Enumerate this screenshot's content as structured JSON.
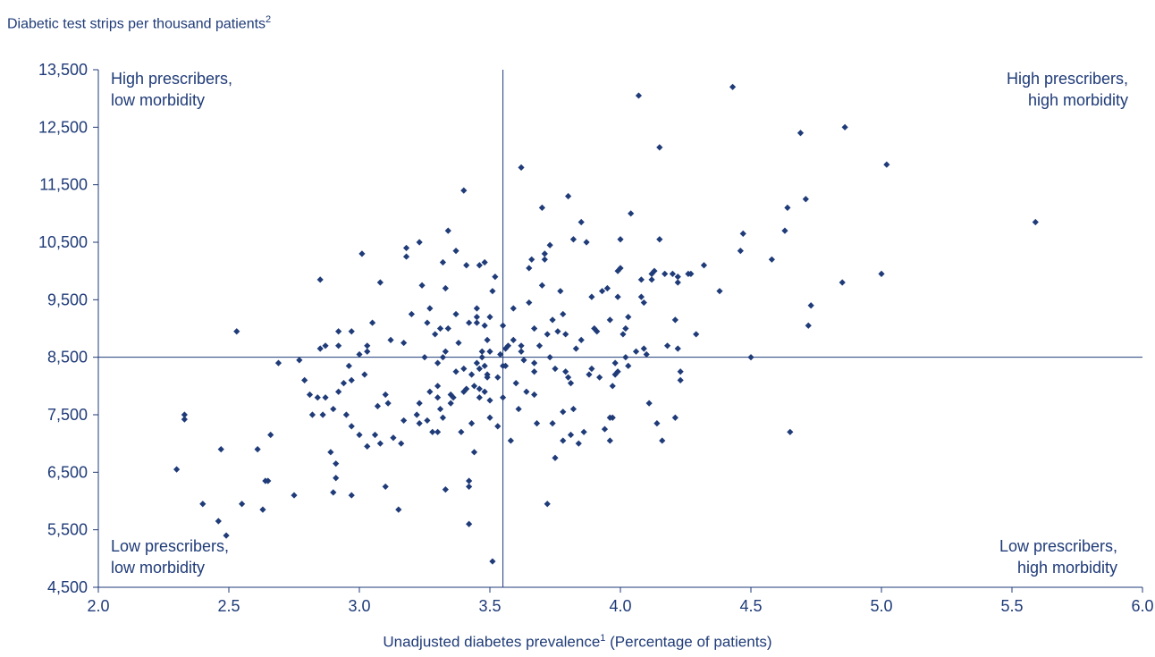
{
  "chart_data": {
    "type": "scatter",
    "ylabel": "Diabetic test strips per thousand patients",
    "ylabel_superscript": "2",
    "xlabel_pre": "Unadjusted diabetes prevalence",
    "xlabel_superscript": "1",
    "xlabel_post": " (Percentage of patients)",
    "xlim": [
      2.0,
      6.0
    ],
    "ylim": [
      4500,
      13500
    ],
    "xticks": [
      "2.0",
      "2.5",
      "3.0",
      "3.5",
      "4.0",
      "4.5",
      "5.0",
      "5.5",
      "6.0"
    ],
    "yticks": [
      "13,500",
      "12,500",
      "11,500",
      "10,500",
      "9,500",
      "8,500",
      "7,500",
      "6,500",
      "5,500",
      "4,500"
    ],
    "quadrant_divider": {
      "x": 3.55,
      "y": 8500
    },
    "quadrant_labels": {
      "top_left": [
        "High prescribers,",
        "low morbidity"
      ],
      "top_right": [
        "High prescribers,",
        "high morbidity"
      ],
      "bottom_left": [
        "Low prescribers,",
        "low morbidity"
      ],
      "bottom_right": [
        "Low prescribers,",
        "high morbidity"
      ]
    },
    "marker_color": "#1f3b78",
    "grid": false,
    "points": [
      [
        2.3,
        6550
      ],
      [
        2.33,
        7500
      ],
      [
        2.33,
        7420
      ],
      [
        2.4,
        5950
      ],
      [
        2.46,
        5650
      ],
      [
        2.47,
        6900
      ],
      [
        2.49,
        5400
      ],
      [
        2.53,
        8950
      ],
      [
        2.55,
        5950
      ],
      [
        2.61,
        6900
      ],
      [
        2.63,
        5850
      ],
      [
        2.64,
        6350
      ],
      [
        2.65,
        6350
      ],
      [
        2.66,
        7150
      ],
      [
        2.69,
        8400
      ],
      [
        2.75,
        6100
      ],
      [
        2.77,
        8450
      ],
      [
        2.79,
        8100
      ],
      [
        2.81,
        7850
      ],
      [
        2.82,
        7500
      ],
      [
        2.84,
        7800
      ],
      [
        2.85,
        9850
      ],
      [
        2.85,
        8650
      ],
      [
        2.86,
        7500
      ],
      [
        2.87,
        8700
      ],
      [
        2.87,
        7800
      ],
      [
        2.89,
        6850
      ],
      [
        2.9,
        7600
      ],
      [
        2.9,
        6150
      ],
      [
        2.91,
        6400
      ],
      [
        2.91,
        6650
      ],
      [
        2.92,
        7900
      ],
      [
        2.92,
        8700
      ],
      [
        2.92,
        8950
      ],
      [
        2.94,
        8050
      ],
      [
        2.95,
        7500
      ],
      [
        2.96,
        8350
      ],
      [
        2.97,
        8950
      ],
      [
        2.97,
        8100
      ],
      [
        2.97,
        7300
      ],
      [
        2.97,
        6100
      ],
      [
        3.0,
        8550
      ],
      [
        3.0,
        7150
      ],
      [
        3.01,
        10300
      ],
      [
        3.02,
        8200
      ],
      [
        3.03,
        6950
      ],
      [
        3.03,
        8700
      ],
      [
        3.03,
        8600
      ],
      [
        3.05,
        9100
      ],
      [
        3.06,
        7150
      ],
      [
        3.07,
        7650
      ],
      [
        3.08,
        9800
      ],
      [
        3.08,
        7000
      ],
      [
        3.1,
        6250
      ],
      [
        3.1,
        7850
      ],
      [
        3.11,
        7700
      ],
      [
        3.12,
        8800
      ],
      [
        3.13,
        7100
      ],
      [
        3.15,
        5850
      ],
      [
        3.16,
        7000
      ],
      [
        3.17,
        8750
      ],
      [
        3.17,
        7400
      ],
      [
        3.18,
        10400
      ],
      [
        3.18,
        10250
      ],
      [
        3.2,
        9250
      ],
      [
        3.22,
        7500
      ],
      [
        3.23,
        7700
      ],
      [
        3.23,
        7350
      ],
      [
        3.23,
        10500
      ],
      [
        3.24,
        9750
      ],
      [
        3.25,
        8500
      ],
      [
        3.26,
        9100
      ],
      [
        3.26,
        7400
      ],
      [
        3.27,
        7900
      ],
      [
        3.27,
        9350
      ],
      [
        3.28,
        7200
      ],
      [
        3.29,
        8900
      ],
      [
        3.3,
        8000
      ],
      [
        3.3,
        7800
      ],
      [
        3.3,
        8400
      ],
      [
        3.3,
        7200
      ],
      [
        3.31,
        9000
      ],
      [
        3.31,
        7600
      ],
      [
        3.32,
        7450
      ],
      [
        3.32,
        8500
      ],
      [
        3.32,
        10150
      ],
      [
        3.33,
        6200
      ],
      [
        3.33,
        9700
      ],
      [
        3.33,
        8600
      ],
      [
        3.34,
        10700
      ],
      [
        3.34,
        9000
      ],
      [
        3.35,
        7850
      ],
      [
        3.35,
        7700
      ],
      [
        3.36,
        7800
      ],
      [
        3.37,
        9250
      ],
      [
        3.37,
        8250
      ],
      [
        3.37,
        10350
      ],
      [
        3.38,
        8750
      ],
      [
        3.39,
        7200
      ],
      [
        3.4,
        7900
      ],
      [
        3.4,
        8300
      ],
      [
        3.4,
        11400
      ],
      [
        3.41,
        10100
      ],
      [
        3.41,
        7950
      ],
      [
        3.42,
        5600
      ],
      [
        3.42,
        6350
      ],
      [
        3.42,
        6250
      ],
      [
        3.42,
        9100
      ],
      [
        3.43,
        8200
      ],
      [
        3.43,
        7350
      ],
      [
        3.44,
        8000
      ],
      [
        3.44,
        6850
      ],
      [
        3.45,
        9100
      ],
      [
        3.45,
        8400
      ],
      [
        3.45,
        9350
      ],
      [
        3.45,
        9200
      ],
      [
        3.46,
        8300
      ],
      [
        3.46,
        7800
      ],
      [
        3.46,
        7950
      ],
      [
        3.46,
        10100
      ],
      [
        3.47,
        8600
      ],
      [
        3.47,
        8500
      ],
      [
        3.48,
        7900
      ],
      [
        3.48,
        10150
      ],
      [
        3.48,
        8350
      ],
      [
        3.48,
        9050
      ],
      [
        3.49,
        8800
      ],
      [
        3.49,
        8150
      ],
      [
        3.49,
        8200
      ],
      [
        3.5,
        9200
      ],
      [
        3.5,
        7750
      ],
      [
        3.5,
        7450
      ],
      [
        3.5,
        8600
      ],
      [
        3.51,
        4950
      ],
      [
        3.51,
        9650
      ],
      [
        3.52,
        9900
      ],
      [
        3.53,
        8150
      ],
      [
        3.53,
        7300
      ],
      [
        3.54,
        8550
      ],
      [
        3.55,
        9050
      ],
      [
        3.55,
        8350
      ],
      [
        3.55,
        7800
      ],
      [
        3.56,
        8350
      ],
      [
        3.56,
        8650
      ],
      [
        3.57,
        8700
      ],
      [
        3.58,
        7050
      ],
      [
        3.59,
        8800
      ],
      [
        3.59,
        9350
      ],
      [
        3.6,
        8050
      ],
      [
        3.61,
        7600
      ],
      [
        3.62,
        11800
      ],
      [
        3.62,
        8700
      ],
      [
        3.62,
        8600
      ],
      [
        3.63,
        8450
      ],
      [
        3.64,
        7900
      ],
      [
        3.65,
        10050
      ],
      [
        3.65,
        9450
      ],
      [
        3.66,
        10200
      ],
      [
        3.67,
        9000
      ],
      [
        3.67,
        7850
      ],
      [
        3.67,
        8250
      ],
      [
        3.67,
        8400
      ],
      [
        3.68,
        7350
      ],
      [
        3.69,
        8700
      ],
      [
        3.7,
        11100
      ],
      [
        3.7,
        9750
      ],
      [
        3.71,
        10300
      ],
      [
        3.71,
        10200
      ],
      [
        3.72,
        8900
      ],
      [
        3.72,
        5950
      ],
      [
        3.73,
        10450
      ],
      [
        3.73,
        8500
      ],
      [
        3.74,
        7350
      ],
      [
        3.74,
        9150
      ],
      [
        3.75,
        6750
      ],
      [
        3.75,
        8300
      ],
      [
        3.76,
        8950
      ],
      [
        3.77,
        9650
      ],
      [
        3.78,
        7050
      ],
      [
        3.78,
        7550
      ],
      [
        3.78,
        9250
      ],
      [
        3.79,
        8250
      ],
      [
        3.79,
        8900
      ],
      [
        3.8,
        11300
      ],
      [
        3.8,
        8150
      ],
      [
        3.81,
        8050
      ],
      [
        3.81,
        7150
      ],
      [
        3.82,
        10550
      ],
      [
        3.82,
        7600
      ],
      [
        3.83,
        8650
      ],
      [
        3.84,
        7000
      ],
      [
        3.85,
        10850
      ],
      [
        3.85,
        8800
      ],
      [
        3.86,
        7200
      ],
      [
        3.87,
        10500
      ],
      [
        3.88,
        8200
      ],
      [
        3.89,
        9550
      ],
      [
        3.89,
        8300
      ],
      [
        3.9,
        9000
      ],
      [
        3.91,
        8950
      ],
      [
        3.92,
        8150
      ],
      [
        3.93,
        9650
      ],
      [
        3.94,
        7250
      ],
      [
        3.95,
        9700
      ],
      [
        3.96,
        7050
      ],
      [
        3.96,
        7450
      ],
      [
        3.96,
        9150
      ],
      [
        3.97,
        8000
      ],
      [
        3.97,
        7450
      ],
      [
        3.98,
        8400
      ],
      [
        3.98,
        8200
      ],
      [
        3.99,
        10000
      ],
      [
        3.99,
        9550
      ],
      [
        3.99,
        8250
      ],
      [
        4.0,
        10050
      ],
      [
        4.0,
        10550
      ],
      [
        4.01,
        8900
      ],
      [
        4.02,
        9000
      ],
      [
        4.02,
        8500
      ],
      [
        4.03,
        9200
      ],
      [
        4.03,
        8350
      ],
      [
        4.04,
        11000
      ],
      [
        4.06,
        8600
      ],
      [
        4.07,
        13050
      ],
      [
        4.08,
        9850
      ],
      [
        4.08,
        9550
      ],
      [
        4.09,
        9450
      ],
      [
        4.09,
        8650
      ],
      [
        4.1,
        8550
      ],
      [
        4.11,
        7700
      ],
      [
        4.12,
        9850
      ],
      [
        4.12,
        9950
      ],
      [
        4.13,
        10000
      ],
      [
        4.14,
        7350
      ],
      [
        4.15,
        12150
      ],
      [
        4.15,
        10550
      ],
      [
        4.16,
        7050
      ],
      [
        4.17,
        9950
      ],
      [
        4.18,
        8700
      ],
      [
        4.2,
        9950
      ],
      [
        4.21,
        7450
      ],
      [
        4.21,
        9150
      ],
      [
        4.22,
        9900
      ],
      [
        4.22,
        9800
      ],
      [
        4.22,
        8650
      ],
      [
        4.23,
        8250
      ],
      [
        4.23,
        8100
      ],
      [
        4.26,
        9950
      ],
      [
        4.27,
        9950
      ],
      [
        4.29,
        8900
      ],
      [
        4.32,
        10100
      ],
      [
        4.38,
        9650
      ],
      [
        4.43,
        13200
      ],
      [
        4.46,
        10350
      ],
      [
        4.47,
        10650
      ],
      [
        4.5,
        8500
      ],
      [
        4.58,
        10200
      ],
      [
        4.63,
        10700
      ],
      [
        4.64,
        11100
      ],
      [
        4.65,
        7200
      ],
      [
        4.69,
        12400
      ],
      [
        4.71,
        11250
      ],
      [
        4.72,
        9050
      ],
      [
        4.73,
        9400
      ],
      [
        4.85,
        9800
      ],
      [
        4.86,
        12500
      ],
      [
        5.0,
        9950
      ],
      [
        5.02,
        11850
      ],
      [
        5.59,
        10850
      ]
    ]
  }
}
